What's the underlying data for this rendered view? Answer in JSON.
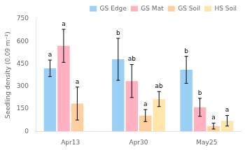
{
  "chart_data": {
    "type": "bar",
    "categories": [
      "Apr13",
      "Apr30",
      "May25"
    ],
    "series": [
      {
        "name": "GS Edge",
        "values": [
          420,
          480,
          410
        ],
        "errors": [
          55,
          140,
          90
        ],
        "labels": [
          "a",
          "b",
          "b"
        ]
      },
      {
        "name": "GS Mat",
        "values": [
          570,
          335,
          160
        ],
        "errors": [
          110,
          110,
          60
        ],
        "labels": [
          "a",
          "ab",
          "b"
        ]
      },
      {
        "name": "GS Soil",
        "values": [
          185,
          105,
          35
        ],
        "errors": [
          110,
          40,
          20
        ],
        "labels": [
          "a",
          "a",
          "a"
        ]
      },
      {
        "name": "HS Soil",
        "values": [
          null,
          215,
          70
        ],
        "errors": [
          null,
          50,
          35
        ],
        "labels": [
          null,
          "ab",
          "a"
        ]
      }
    ],
    "ylabel": "Seedling density (0.09 m⁻²)",
    "ylim": [
      0,
      750
    ],
    "yticks": [
      0,
      150,
      300,
      450,
      600,
      750
    ],
    "grid": false,
    "legend": "upper right"
  }
}
